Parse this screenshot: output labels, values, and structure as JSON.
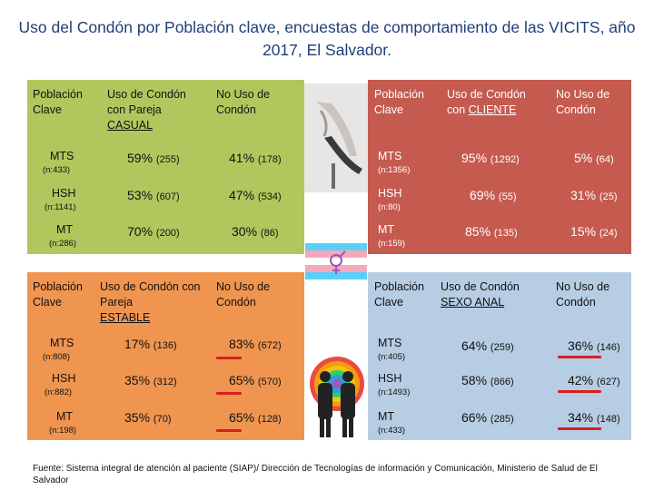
{
  "title": "Uso del Condón por Población clave, encuestas de comportamiento de las VICITS, año 2017, El Salvador.",
  "panels": {
    "casual": {
      "color": "#b0c75e",
      "headers": [
        "Población Clave",
        "Uso de Condón con Pareja",
        "CASUAL",
        "No Uso de Condón"
      ],
      "rows": [
        {
          "label": "MTS",
          "n": "(n:433)",
          "uso": "59%",
          "uso_n": "(255)",
          "no": "41%",
          "no_n": "(178)"
        },
        {
          "label": "HSH",
          "n": "(n:1141)",
          "uso": "53%",
          "uso_n": "(607)",
          "no": "47%",
          "no_n": "(534)"
        },
        {
          "label": "MT",
          "n": "(n:286)",
          "uso": "70%",
          "uso_n": "(200)",
          "no": "30%",
          "no_n": "(86)"
        }
      ]
    },
    "cliente": {
      "color": "#c55a4f",
      "headers": [
        "Población Clave",
        "Uso de Condón con",
        "CLIENTE",
        "No Uso de Condón"
      ],
      "rows": [
        {
          "label": "MTS",
          "n": "(n:1356)",
          "uso": "95%",
          "uso_n": "(1292)",
          "no": "5%",
          "no_n": "(64)"
        },
        {
          "label": "HSH",
          "n": "(n:80)",
          "uso": "69%",
          "uso_n": "(55)",
          "no": "31%",
          "no_n": "(25)"
        },
        {
          "label": "MT",
          "n": "(n:159)",
          "uso": "85%",
          "uso_n": "(135)",
          "no": "15%",
          "no_n": "(24)"
        }
      ]
    },
    "estable": {
      "color": "#f0954f",
      "headers": [
        "Población Clave",
        "Uso de Condón con Pareja",
        "ESTABLE",
        "No Uso de Condón"
      ],
      "rows": [
        {
          "label": "MTS",
          "n": "(n:808)",
          "uso": "17%",
          "uso_n": "(136)",
          "no": "83%",
          "no_n": "(672)"
        },
        {
          "label": "HSH",
          "n": "(n:882)",
          "uso": "35%",
          "uso_n": "(312)",
          "no": "65%",
          "no_n": "(570)"
        },
        {
          "label": "MT",
          "n": "(n:198)",
          "uso": "35%",
          "uso_n": "(70)",
          "no": "65%",
          "no_n": "(128)"
        }
      ]
    },
    "anal": {
      "color": "#b7cde3",
      "headers": [
        "Población Clave",
        "Uso de Condón",
        "SEXO ANAL",
        "No Uso de Condón"
      ],
      "rows": [
        {
          "label": "MTS",
          "n": "(n:405)",
          "uso": "64%",
          "uso_n": "(259)",
          "no": "36%",
          "no_n": "(146)"
        },
        {
          "label": "HSH",
          "n": "(n:1493)",
          "uso": "58%",
          "uso_n": "(866)",
          "no": "42%",
          "no_n": "(627)"
        },
        {
          "label": "MT",
          "n": "(n:433)",
          "uso": "66%",
          "uso_n": "(285)",
          "no": "34%",
          "no_n": "(148)"
        }
      ]
    }
  },
  "source": "Fuente: Sistema integral de atención al paciente (SIAP)/ Dirección de Tecnologías de información y Comunicación, Ministerio de Salud de El Salvador"
}
